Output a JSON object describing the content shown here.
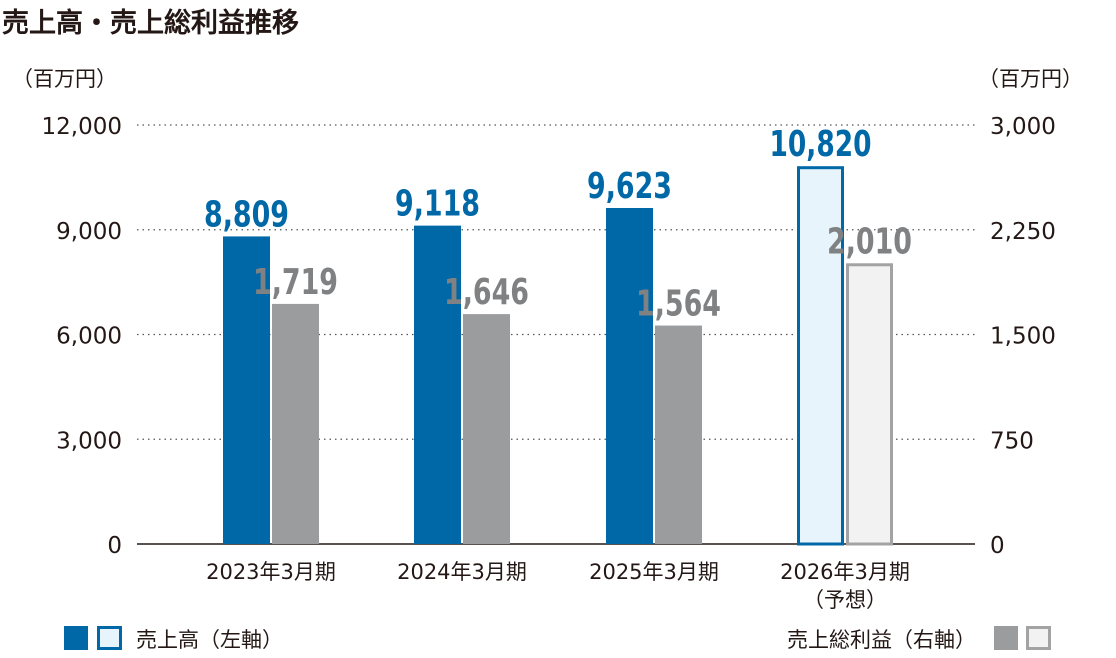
{
  "chart_data": {
    "type": "bar",
    "title": "売上高・売上総利益推移",
    "left_axis": {
      "unit": "（百万円）",
      "ylim": [
        0,
        12000
      ],
      "ticks": [
        "0",
        "3,000",
        "6,000",
        "9,000",
        "12,000"
      ]
    },
    "right_axis": {
      "unit": "（百万円）",
      "ylim": [
        0,
        3000
      ],
      "ticks": [
        "0",
        "750",
        "1,500",
        "2,250",
        "3,000"
      ]
    },
    "categories": [
      {
        "label": "2023年3月期",
        "sub": ""
      },
      {
        "label": "2024年3月期",
        "sub": ""
      },
      {
        "label": "2025年3月期",
        "sub": ""
      },
      {
        "label": "2026年3月期",
        "sub": "（予想）"
      }
    ],
    "forecast": [
      false,
      false,
      false,
      true
    ],
    "series": [
      {
        "name": "売上高（左軸）",
        "axis": "left",
        "values": [
          8809,
          9118,
          9623,
          10820
        ],
        "labels": [
          "8,809",
          "9,118",
          "9,623",
          "10,820"
        ],
        "color": "#0068a7",
        "forecast_fill": "#e8f4fc",
        "label_color": "#0068a7"
      },
      {
        "name": "売上総利益（右軸）",
        "axis": "right",
        "values": [
          1719,
          1646,
          1564,
          2010
        ],
        "labels": [
          "1,719",
          "1,646",
          "1,564",
          "2,010"
        ],
        "color": "#9b9c9e",
        "forecast_fill": "#f2f2f2",
        "forecast_stroke": "#a3a3a3",
        "label_color": "#808183"
      }
    ],
    "grid": "horizontal dotted",
    "legend": "bottom"
  }
}
